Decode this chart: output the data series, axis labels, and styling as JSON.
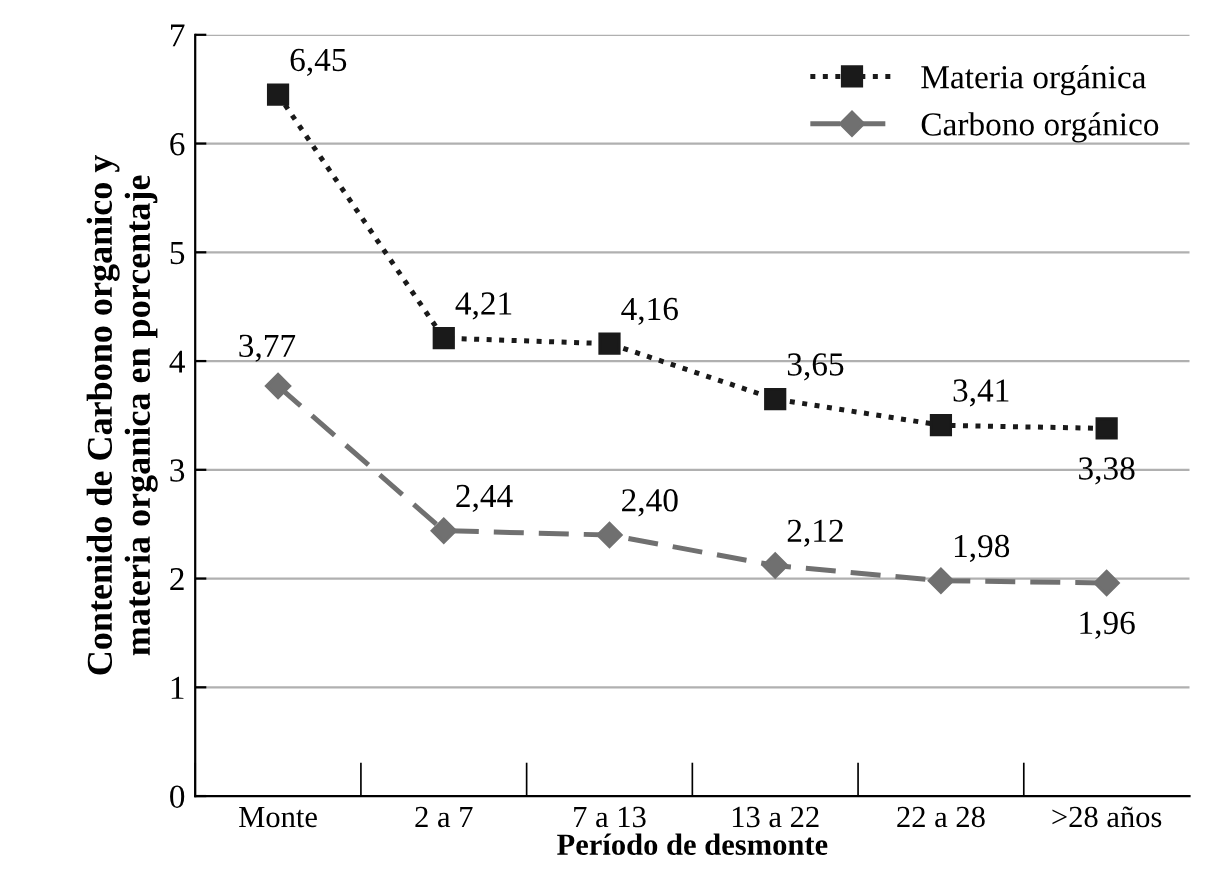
{
  "chart_data": {
    "type": "line",
    "xlabel": "Período de desmonte",
    "ylabel": "Contenido de Carbono organico y\nmateria organica en porcentaje",
    "categories": [
      "Monte",
      "2 a 7",
      "7 a 13",
      "13 a 22",
      "22 a 28",
      ">28 años"
    ],
    "series": [
      {
        "name": "Materia orgánica",
        "color": "#1a1a1a",
        "values": [
          6.45,
          4.21,
          4.16,
          3.65,
          3.41,
          3.38
        ],
        "value_labels": [
          "6,45",
          "4,21",
          "4,16",
          "3,65",
          "3,41",
          "3,38"
        ],
        "marker": "square",
        "line_style": "dotted"
      },
      {
        "name": "Carbono orgánico",
        "color": "#707070",
        "values": [
          3.77,
          2.44,
          2.4,
          2.12,
          1.98,
          1.96
        ],
        "value_labels": [
          "3,77",
          "2,44",
          "2,40",
          "2,12",
          "1,98",
          "1,96"
        ],
        "marker": "diamond",
        "line_style": "dashed"
      }
    ],
    "ylim": [
      0,
      7
    ],
    "yticks": [
      0,
      1,
      2,
      3,
      4,
      5,
      6,
      7
    ],
    "grid": "y",
    "legend": "top right"
  }
}
